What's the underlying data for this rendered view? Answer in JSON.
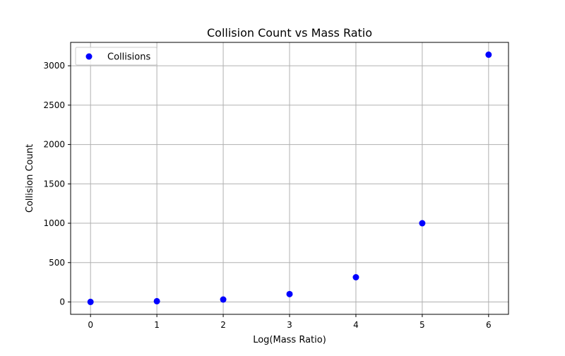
{
  "chart_data": {
    "type": "scatter",
    "title": "Collision Count vs Mass Ratio",
    "xlabel": "Log(Mass Ratio)",
    "ylabel": "Collision Count",
    "xlim": [
      -0.3,
      6.3
    ],
    "ylim": [
      -157,
      3297
    ],
    "xticks": [
      0,
      1,
      2,
      3,
      4,
      5,
      6
    ],
    "yticks": [
      0,
      500,
      1000,
      1500,
      2000,
      2500,
      3000
    ],
    "grid": true,
    "legend": {
      "position": "top-left"
    },
    "series": [
      {
        "name": "Collisions",
        "color": "#0000ff",
        "x": [
          0,
          1,
          2,
          3,
          4,
          5,
          6
        ],
        "y": [
          1,
          10,
          31,
          100,
          314,
          1000,
          3141
        ]
      }
    ]
  }
}
